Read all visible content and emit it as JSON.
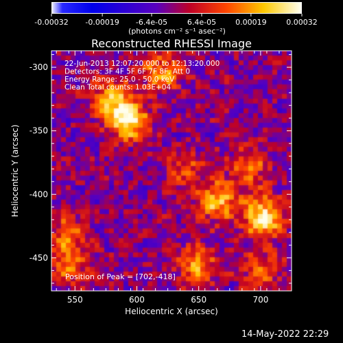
{
  "chart_data": {
    "type": "heatmap",
    "title": "Reconstructed RHESSI Image",
    "xlabel": "Heliocentric X (arcsec)",
    "ylabel": "Heliocentric Y (arcsec)",
    "xlim": [
      531,
      725
    ],
    "ylim": [
      -476,
      -287
    ],
    "xticks": [
      550,
      600,
      650,
      700
    ],
    "yticks": [
      -300,
      -350,
      -400,
      -450
    ],
    "colorbar": {
      "ticks": [
        "-0.00032",
        "-0.00019",
        "-6.4e-05",
        "6.4e-05",
        "0.00019",
        "0.00032"
      ],
      "unit_label": "(photons cm⁻² s⁻¹ asec⁻²)",
      "range": [
        -0.00032,
        0.00032
      ]
    },
    "annotations": [
      "22-Jun-2013 12:07:20.000 to 12:13:20.000",
      "Detectors: 3F 4F 5F 6F 7F 8F, Att 0",
      "Energy Range: 25.0 - 50.0 keV",
      "Clean     Total counts: 1.03E+04"
    ],
    "peak_label": "Position of Peak = [702,-418]",
    "peak": [
      702,
      -418
    ],
    "sources": [
      {
        "x": 593,
        "y": -342,
        "intensity": 0.00032
      },
      {
        "x": 580,
        "y": -325,
        "intensity": 0.00022
      },
      {
        "x": 702,
        "y": -418,
        "intensity": 0.00032
      },
      {
        "x": 665,
        "y": -405,
        "intensity": 0.00024
      },
      {
        "x": 648,
        "y": -455,
        "intensity": 0.0002
      },
      {
        "x": 545,
        "y": -455,
        "intensity": 0.00018
      },
      {
        "x": 545,
        "y": -430,
        "intensity": 0.00014
      },
      {
        "x": 620,
        "y": -305,
        "intensity": 0.0002
      },
      {
        "x": 690,
        "y": -380,
        "intensity": 0.00016
      },
      {
        "x": 640,
        "y": -380,
        "intensity": 0.00012
      },
      {
        "x": 700,
        "y": -460,
        "intensity": 0.00016
      }
    ]
  },
  "footer": {
    "timestamp": "14-May-2022 22:29"
  }
}
